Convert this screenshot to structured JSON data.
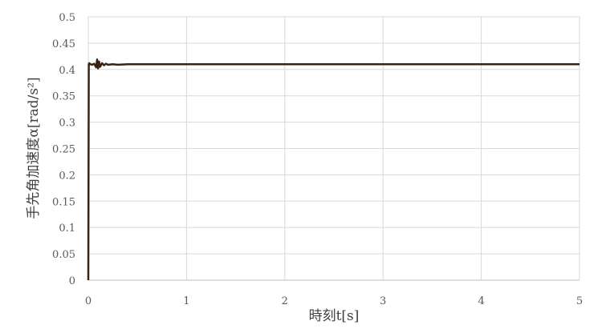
{
  "chart_data": {
    "type": "line",
    "title": "",
    "xlabel": "時刻t[s]",
    "ylabel": "手先角加速度α[rad/s²]",
    "xlim": [
      0,
      5
    ],
    "ylim": [
      0,
      0.5
    ],
    "xticks": [
      "0",
      "1",
      "2",
      "3",
      "4",
      "5"
    ],
    "yticks": [
      "0",
      "0.05",
      "0.1",
      "0.15",
      "0.2",
      "0.25",
      "0.3",
      "0.35",
      "0.4",
      "0.45",
      "0.5"
    ],
    "grid": true,
    "legend": "none",
    "series": [
      {
        "color": "#3b2314",
        "x": [
          0,
          0.005,
          0.01,
          0.02,
          0.04,
          0.06,
          0.08,
          0.09,
          0.1,
          0.11,
          0.12,
          0.14,
          0.16,
          0.18,
          0.2,
          0.25,
          0.3,
          0.4,
          0.6,
          1,
          2,
          3,
          4,
          5
        ],
        "y": [
          0,
          0.41,
          0.412,
          0.41,
          0.409,
          0.411,
          0.404,
          0.419,
          0.402,
          0.415,
          0.405,
          0.412,
          0.408,
          0.411,
          0.409,
          0.41,
          0.409,
          0.41,
          0.41,
          0.41,
          0.41,
          0.41,
          0.41,
          0.41
        ]
      }
    ]
  }
}
